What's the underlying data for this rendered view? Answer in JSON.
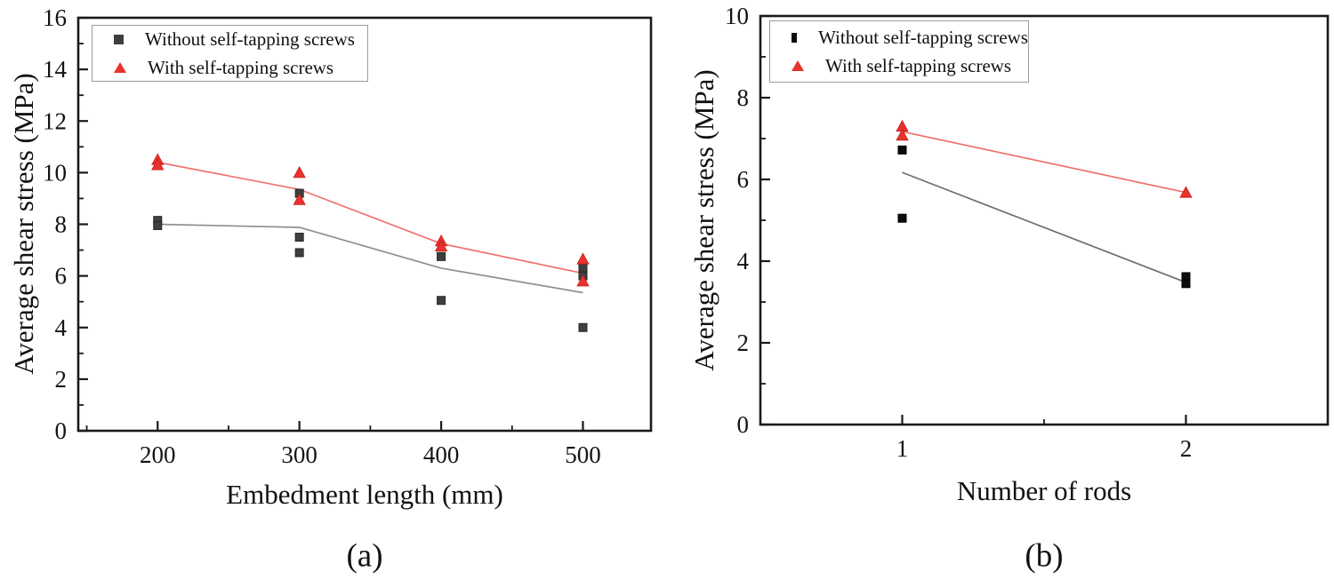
{
  "figure": {
    "background": "#ffffff",
    "axis_color": "#1a1a1a",
    "text_color": "#141414"
  },
  "chart_data": [
    {
      "type": "scatter",
      "caption": "(a)",
      "xlabel": "Embedment length (mm)",
      "ylabel": "Average shear stress (MPa)",
      "xlim": [
        144,
        548
      ],
      "ylim": [
        0,
        16
      ],
      "xticks": [
        200,
        300,
        400,
        500
      ],
      "xminor": [
        150,
        250,
        350,
        450
      ],
      "yticks": [
        0,
        2,
        4,
        6,
        8,
        10,
        12,
        14,
        16
      ],
      "yminor": [
        1,
        3,
        5,
        7,
        9,
        11,
        13,
        15
      ],
      "grid": false,
      "legend_position": "top-left",
      "series": [
        {
          "name": "without-screws",
          "label": "Without self-tapping screws",
          "marker": "square",
          "marker_color": "#3f3f3f",
          "marker_edge": "#262626",
          "line_color": "#8f8f8f",
          "points": [
            [
              200,
              8.15
            ],
            [
              200,
              7.95
            ],
            [
              300,
              9.2
            ],
            [
              300,
              7.5
            ],
            [
              300,
              6.9
            ],
            [
              400,
              6.75
            ],
            [
              400,
              5.05
            ],
            [
              500,
              6.3
            ],
            [
              500,
              6.0
            ],
            [
              500,
              4.0
            ]
          ],
          "trend": [
            [
              200,
              8.0
            ],
            [
              300,
              7.88
            ],
            [
              400,
              6.3
            ],
            [
              500,
              5.35
            ]
          ]
        },
        {
          "name": "with-screws",
          "label": "With self-tapping screws",
          "marker": "triangle",
          "marker_color": "#e8322b",
          "marker_edge": "#c81d1d",
          "line_color": "#ef7170",
          "points": [
            [
              200,
              10.5
            ],
            [
              200,
              10.3
            ],
            [
              300,
              10.0
            ],
            [
              300,
              8.95
            ],
            [
              400,
              7.35
            ],
            [
              400,
              7.15
            ],
            [
              500,
              6.65
            ],
            [
              500,
              5.8
            ]
          ],
          "trend": [
            [
              200,
              10.4
            ],
            [
              300,
              9.35
            ],
            [
              400,
              7.25
            ],
            [
              500,
              6.1
            ]
          ]
        }
      ]
    },
    {
      "type": "scatter",
      "caption": "(b)",
      "xlabel": "Number of rods",
      "ylabel": "Average shear stress (MPa)",
      "xlim": [
        0.5,
        2.5
      ],
      "ylim": [
        0,
        10
      ],
      "xticks": [
        1,
        2
      ],
      "xminor": [
        1.5
      ],
      "yticks": [
        0,
        2,
        4,
        6,
        8,
        10
      ],
      "yminor": [
        1,
        3,
        5,
        7,
        9
      ],
      "grid": false,
      "legend_position": "top-left",
      "series": [
        {
          "name": "without-screws",
          "label": "Without self-tapping screws",
          "marker": "square",
          "marker_color": "#0c0c0c",
          "marker_edge": "#000000",
          "line_color": "#6f6f6f",
          "points": [
            [
              1,
              6.72
            ],
            [
              1,
              5.05
            ],
            [
              2,
              3.62
            ],
            [
              2,
              3.45
            ]
          ],
          "trend": [
            [
              1,
              6.17
            ],
            [
              2,
              3.48
            ]
          ]
        },
        {
          "name": "with-screws",
          "label": "With self-tapping screws",
          "marker": "triangle",
          "marker_color": "#e8322b",
          "marker_edge": "#c81d1d",
          "line_color": "#ef7170",
          "points": [
            [
              1,
              7.3
            ],
            [
              1,
              7.08
            ],
            [
              2,
              5.68
            ]
          ],
          "trend": [
            [
              1,
              7.17
            ],
            [
              2,
              5.68
            ]
          ]
        }
      ]
    }
  ]
}
